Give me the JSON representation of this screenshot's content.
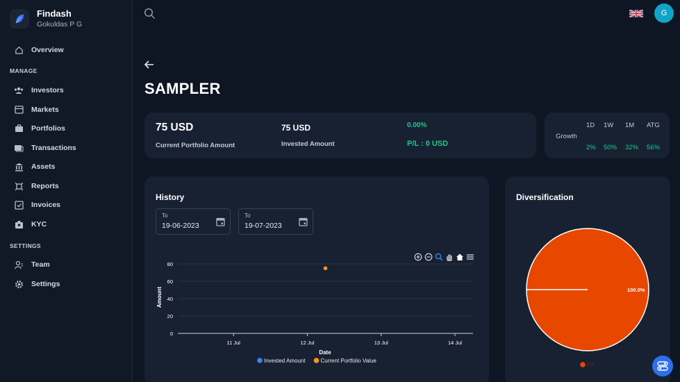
{
  "brand": {
    "name": "Findash",
    "user": "Gokuldas P G"
  },
  "nav": {
    "overview": "Overview",
    "manage_heading": "MANAGE",
    "manage_items": [
      "Investors",
      "Markets",
      "Portfolios",
      "Transactions",
      "Assets",
      "Reports",
      "Invoices",
      "KYC"
    ],
    "settings_heading": "SETTINGS",
    "settings_items": [
      "Team",
      "Settings"
    ]
  },
  "header": {
    "avatar_initial": "G",
    "language_flag": "uk-flag-icon"
  },
  "page": {
    "title": "SAMPLER"
  },
  "summary": {
    "portfolio_amount": "75 USD",
    "portfolio_label": "Current Portfolio Amount",
    "invested_amount": "75 USD",
    "invested_label": "Invested Amount",
    "percent_change": "0.00%",
    "pl_text": "P/L : 0 USD"
  },
  "growth": {
    "label": "Growth",
    "periods": [
      "1D",
      "1W",
      "1M",
      "ATG"
    ],
    "values": [
      "2%",
      "50%",
      "32%",
      "56%"
    ]
  },
  "history": {
    "title": "History",
    "from_label": "To",
    "from_value": "19-06-2023",
    "to_label": "To",
    "to_value": "19-07-2023"
  },
  "diversification": {
    "title": "Diversification"
  },
  "colors": {
    "accent_blue": "#2f6fec",
    "green": "#1fc98a",
    "orange_series": "#f7931e",
    "blue_series": "#3b82f6",
    "pie_fill": "#e84700"
  },
  "chart_data": [
    {
      "type": "scatter",
      "xlabel": "Date",
      "ylabel": "Amount",
      "x_ticks": [
        "11 Jul",
        "12 Jul",
        "13 Jul",
        "14 Jul"
      ],
      "y_ticks": [
        "0",
        "20",
        "40",
        "60",
        "80"
      ],
      "ylim": [
        0,
        80
      ],
      "x_range": [
        "2023-07-10 06:00",
        "2023-07-14 06:00"
      ],
      "series": [
        {
          "name": "Invested Amount",
          "points": []
        },
        {
          "name": "Current Portfolio Value",
          "points": [
            {
              "x": "2023-07-12 06:00",
              "y": 75
            }
          ]
        }
      ],
      "legend": "bottom",
      "grid": true
    },
    {
      "type": "pie",
      "slices": [
        {
          "name": "FX",
          "value": 100.0,
          "label": "100.0%"
        }
      ],
      "legend": "bottom"
    }
  ]
}
